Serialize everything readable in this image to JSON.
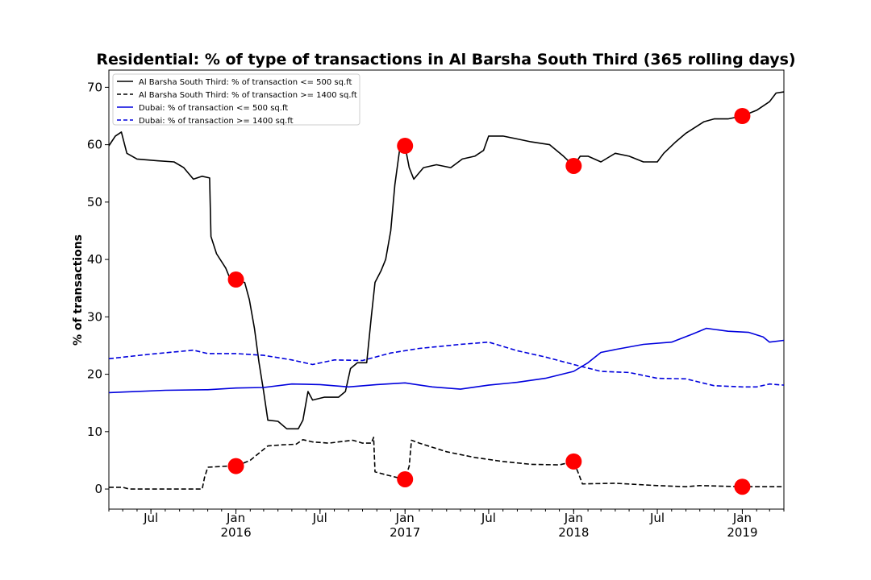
{
  "chart_data": {
    "type": "line",
    "title": "Residential: % of type of transactions in Al Barsha South Third (365 rolling days)",
    "ylabel": "% of transactions",
    "xlabel": "",
    "x_range": [
      "2015-04-01",
      "2019-04-01"
    ],
    "ylim": [
      -3.5,
      73
    ],
    "y_ticks": [
      0,
      10,
      20,
      30,
      40,
      50,
      60,
      70
    ],
    "x_ticks": [
      {
        "date": "2015-07-01",
        "label": "Jul",
        "sublabel": ""
      },
      {
        "date": "2016-01-01",
        "label": "Jan",
        "sublabel": "2016"
      },
      {
        "date": "2016-07-01",
        "label": "Jul",
        "sublabel": ""
      },
      {
        "date": "2017-01-01",
        "label": "Jan",
        "sublabel": "2017"
      },
      {
        "date": "2017-07-01",
        "label": "Jul",
        "sublabel": ""
      },
      {
        "date": "2018-01-01",
        "label": "Jan",
        "sublabel": "2018"
      },
      {
        "date": "2018-07-01",
        "label": "Jul",
        "sublabel": ""
      },
      {
        "date": "2019-01-01",
        "label": "Jan",
        "sublabel": "2019"
      }
    ],
    "grid": false,
    "legend_position": "top-left",
    "series": [
      {
        "name": "Al Barsha South Third: % of transaction <= 500 sq.ft",
        "color": "#000000",
        "dash": "solid",
        "points": [
          [
            "2015-04-01",
            59.8
          ],
          [
            "2015-04-15",
            61.5
          ],
          [
            "2015-04-28",
            62.2
          ],
          [
            "2015-05-10",
            58.5
          ],
          [
            "2015-06-01",
            57.5
          ],
          [
            "2015-07-15",
            57.2
          ],
          [
            "2015-08-20",
            57.0
          ],
          [
            "2015-09-10",
            56.0
          ],
          [
            "2015-10-01",
            54.0
          ],
          [
            "2015-10-20",
            54.5
          ],
          [
            "2015-11-05",
            54.2
          ],
          [
            "2015-11-08",
            44.0
          ],
          [
            "2015-11-20",
            41.0
          ],
          [
            "2015-12-10",
            38.5
          ],
          [
            "2015-12-20",
            36.5
          ],
          [
            "2016-01-01",
            36.3
          ],
          [
            "2016-01-20",
            36.0
          ],
          [
            "2016-01-30",
            33.0
          ],
          [
            "2016-02-10",
            28.0
          ],
          [
            "2016-02-20",
            22.0
          ],
          [
            "2016-03-01",
            17.0
          ],
          [
            "2016-03-10",
            12.0
          ],
          [
            "2016-04-01",
            11.8
          ],
          [
            "2016-04-20",
            10.5
          ],
          [
            "2016-05-15",
            10.5
          ],
          [
            "2016-05-25",
            12.0
          ],
          [
            "2016-06-05",
            17.0
          ],
          [
            "2016-06-15",
            15.5
          ],
          [
            "2016-07-10",
            16.0
          ],
          [
            "2016-08-10",
            16.0
          ],
          [
            "2016-08-25",
            17.0
          ],
          [
            "2016-09-05",
            21.0
          ],
          [
            "2016-09-20",
            22.0
          ],
          [
            "2016-10-10",
            22.0
          ],
          [
            "2016-10-20",
            30.0
          ],
          [
            "2016-10-28",
            36.0
          ],
          [
            "2016-11-10",
            38.0
          ],
          [
            "2016-11-20",
            40.0
          ],
          [
            "2016-12-01",
            45.0
          ],
          [
            "2016-12-10",
            53.0
          ],
          [
            "2016-12-20",
            59.0
          ],
          [
            "2017-01-01",
            59.8
          ],
          [
            "2017-01-10",
            56.0
          ],
          [
            "2017-01-20",
            54.0
          ],
          [
            "2017-02-10",
            56.0
          ],
          [
            "2017-03-10",
            56.5
          ],
          [
            "2017-04-10",
            56.0
          ],
          [
            "2017-05-05",
            57.5
          ],
          [
            "2017-06-01",
            58.0
          ],
          [
            "2017-06-20",
            59.0
          ],
          [
            "2017-07-01",
            61.5
          ],
          [
            "2017-08-01",
            61.5
          ],
          [
            "2017-09-01",
            61.0
          ],
          [
            "2017-10-01",
            60.5
          ],
          [
            "2017-11-10",
            60.0
          ],
          [
            "2017-12-10",
            58.0
          ],
          [
            "2018-01-01",
            56.3
          ],
          [
            "2018-01-15",
            58.0
          ],
          [
            "2018-02-01",
            58.0
          ],
          [
            "2018-03-01",
            57.0
          ],
          [
            "2018-04-01",
            58.5
          ],
          [
            "2018-05-01",
            58.0
          ],
          [
            "2018-06-01",
            57.0
          ],
          [
            "2018-07-01",
            57.0
          ],
          [
            "2018-07-15",
            58.5
          ],
          [
            "2018-08-10",
            60.5
          ],
          [
            "2018-09-01",
            62.0
          ],
          [
            "2018-10-10",
            64.0
          ],
          [
            "2018-11-01",
            64.5
          ],
          [
            "2018-12-01",
            64.5
          ],
          [
            "2019-01-01",
            65.0
          ],
          [
            "2019-02-01",
            66.0
          ],
          [
            "2019-03-01",
            67.5
          ],
          [
            "2019-03-15",
            69.0
          ],
          [
            "2019-04-01",
            69.2
          ]
        ]
      },
      {
        "name": "Al Barsha South Third: % of transaction >= 1400 sq.ft",
        "color": "#000000",
        "dash": "dashed",
        "points": [
          [
            "2015-04-01",
            0.3
          ],
          [
            "2015-05-01",
            0.3
          ],
          [
            "2015-05-15",
            0.0
          ],
          [
            "2015-07-01",
            0.0
          ],
          [
            "2015-10-20",
            0.0
          ],
          [
            "2015-10-25",
            2.0
          ],
          [
            "2015-11-01",
            3.8
          ],
          [
            "2015-12-15",
            4.0
          ],
          [
            "2016-01-01",
            4.0
          ],
          [
            "2016-02-01",
            5.0
          ],
          [
            "2016-03-10",
            7.5
          ],
          [
            "2016-04-10",
            7.7
          ],
          [
            "2016-05-10",
            7.8
          ],
          [
            "2016-05-25",
            8.6
          ],
          [
            "2016-06-15",
            8.2
          ],
          [
            "2016-07-20",
            8.0
          ],
          [
            "2016-08-10",
            8.2
          ],
          [
            "2016-09-10",
            8.5
          ],
          [
            "2016-10-01",
            8.0
          ],
          [
            "2016-10-20",
            8.0
          ],
          [
            "2016-10-25",
            9.0
          ],
          [
            "2016-10-28",
            3.0
          ],
          [
            "2016-11-20",
            2.5
          ],
          [
            "2016-12-15",
            2.0
          ],
          [
            "2017-01-01",
            1.7
          ],
          [
            "2017-01-10",
            4.0
          ],
          [
            "2017-01-15",
            8.5
          ],
          [
            "2017-02-01",
            8.0
          ],
          [
            "2017-04-01",
            6.5
          ],
          [
            "2017-06-01",
            5.5
          ],
          [
            "2017-08-01",
            4.8
          ],
          [
            "2017-10-01",
            4.3
          ],
          [
            "2017-12-01",
            4.2
          ],
          [
            "2018-01-01",
            4.8
          ],
          [
            "2018-01-10",
            3.0
          ],
          [
            "2018-01-20",
            0.9
          ],
          [
            "2018-04-01",
            1.0
          ],
          [
            "2018-07-01",
            0.6
          ],
          [
            "2018-09-01",
            0.4
          ],
          [
            "2018-10-01",
            0.6
          ],
          [
            "2019-01-01",
            0.4
          ],
          [
            "2019-04-01",
            0.4
          ]
        ]
      },
      {
        "name": "Dubai: % of transaction <= 500 sq.ft",
        "color": "#0000dd",
        "dash": "solid",
        "points": [
          [
            "2015-04-01",
            16.8
          ],
          [
            "2015-05-01",
            16.9
          ],
          [
            "2015-08-01",
            17.2
          ],
          [
            "2015-11-01",
            17.3
          ],
          [
            "2016-01-01",
            17.6
          ],
          [
            "2016-03-01",
            17.7
          ],
          [
            "2016-05-01",
            18.3
          ],
          [
            "2016-07-01",
            18.2
          ],
          [
            "2016-09-01",
            17.8
          ],
          [
            "2016-11-01",
            18.2
          ],
          [
            "2017-01-01",
            18.5
          ],
          [
            "2017-03-01",
            17.8
          ],
          [
            "2017-05-01",
            17.4
          ],
          [
            "2017-07-01",
            18.1
          ],
          [
            "2017-09-01",
            18.6
          ],
          [
            "2017-11-01",
            19.3
          ],
          [
            "2018-01-01",
            20.5
          ],
          [
            "2018-02-01",
            22.0
          ],
          [
            "2018-03-01",
            23.8
          ],
          [
            "2018-04-01",
            24.3
          ],
          [
            "2018-06-01",
            25.2
          ],
          [
            "2018-08-01",
            25.6
          ],
          [
            "2018-09-15",
            27.0
          ],
          [
            "2018-10-15",
            28.0
          ],
          [
            "2018-12-01",
            27.5
          ],
          [
            "2019-01-15",
            27.3
          ],
          [
            "2019-02-15",
            26.5
          ],
          [
            "2019-03-01",
            25.6
          ],
          [
            "2019-04-01",
            25.9
          ]
        ]
      },
      {
        "name": "Dubai: % of transaction >= 1400 sq.ft",
        "color": "#0000dd",
        "dash": "dashed",
        "points": [
          [
            "2015-04-01",
            22.7
          ],
          [
            "2015-07-01",
            23.5
          ],
          [
            "2015-10-01",
            24.2
          ],
          [
            "2015-11-01",
            23.6
          ],
          [
            "2016-01-01",
            23.6
          ],
          [
            "2016-03-01",
            23.3
          ],
          [
            "2016-05-01",
            22.5
          ],
          [
            "2016-06-15",
            21.7
          ],
          [
            "2016-08-01",
            22.5
          ],
          [
            "2016-10-01",
            22.4
          ],
          [
            "2016-12-01",
            23.7
          ],
          [
            "2017-02-01",
            24.5
          ],
          [
            "2017-05-01",
            25.2
          ],
          [
            "2017-07-01",
            25.6
          ],
          [
            "2017-09-01",
            24.1
          ],
          [
            "2017-11-01",
            23.0
          ],
          [
            "2018-01-01",
            21.7
          ],
          [
            "2018-03-01",
            20.5
          ],
          [
            "2018-05-01",
            20.3
          ],
          [
            "2018-07-01",
            19.3
          ],
          [
            "2018-09-01",
            19.2
          ],
          [
            "2018-11-01",
            18.0
          ],
          [
            "2019-01-01",
            17.8
          ],
          [
            "2019-02-01",
            17.8
          ],
          [
            "2019-03-01",
            18.3
          ],
          [
            "2019-04-01",
            18.1
          ]
        ]
      }
    ],
    "markers": {
      "color": "#ff0000",
      "points": [
        [
          "2016-01-01",
          36.5
        ],
        [
          "2016-01-01",
          4.0
        ],
        [
          "2017-01-01",
          59.8
        ],
        [
          "2017-01-01",
          1.7
        ],
        [
          "2018-01-01",
          56.3
        ],
        [
          "2018-01-01",
          4.8
        ],
        [
          "2019-01-01",
          65.0
        ],
        [
          "2019-01-01",
          0.4
        ]
      ]
    }
  }
}
